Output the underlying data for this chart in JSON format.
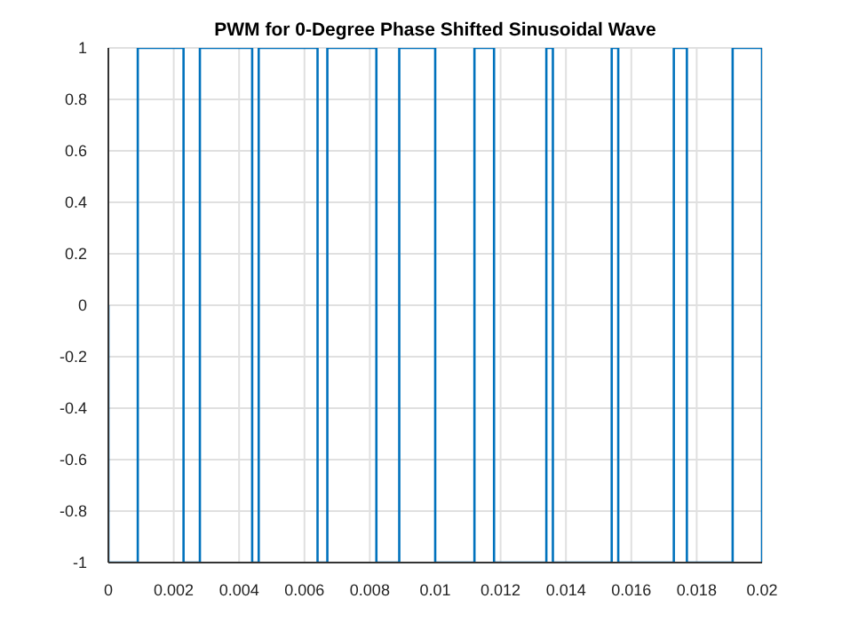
{
  "chart_data": {
    "type": "line",
    "title": "PWM for 0-Degree Phase Shifted Sinusoidal Wave",
    "xlim": [
      0,
      0.02
    ],
    "xticks": [
      0,
      0.002,
      0.004,
      0.006,
      0.008,
      0.01,
      0.012,
      0.014,
      0.016,
      0.018,
      0.02
    ],
    "ylim": [
      -1,
      1
    ],
    "yticks": [
      -1,
      -0.8,
      -0.6,
      -0.4,
      -0.2,
      0,
      0.2,
      0.4,
      0.6,
      0.8,
      1
    ],
    "grid": true,
    "marker": "none",
    "line_style": "solid",
    "series": [
      {
        "color": "#0072bd",
        "x": [
          0,
          0,
          0.0009,
          0.0009,
          0.0023,
          0.0023,
          0.0028,
          0.0028,
          0.0044,
          0.0044,
          0.0046,
          0.0046,
          0.0064,
          0.0064,
          0.0067,
          0.0067,
          0.0082,
          0.0082,
          0.0089,
          0.0089,
          0.01,
          0.01,
          0.0112,
          0.0112,
          0.0118,
          0.0118,
          0.0134,
          0.0134,
          0.0136,
          0.0136,
          0.0154,
          0.0154,
          0.0156,
          0.0156,
          0.0173,
          0.0173,
          0.0177,
          0.0177,
          0.0191,
          0.0191,
          0.02,
          0.02
        ],
        "values": [
          0,
          -1,
          -1,
          1,
          1,
          -1,
          -1,
          1,
          1,
          -1,
          -1,
          1,
          1,
          -1,
          -1,
          1,
          1,
          -1,
          -1,
          1,
          1,
          -1,
          -1,
          1,
          1,
          -1,
          -1,
          1,
          1,
          -1,
          -1,
          1,
          1,
          -1,
          -1,
          1,
          1,
          -1,
          -1,
          1,
          1,
          -1
        ]
      }
    ]
  }
}
